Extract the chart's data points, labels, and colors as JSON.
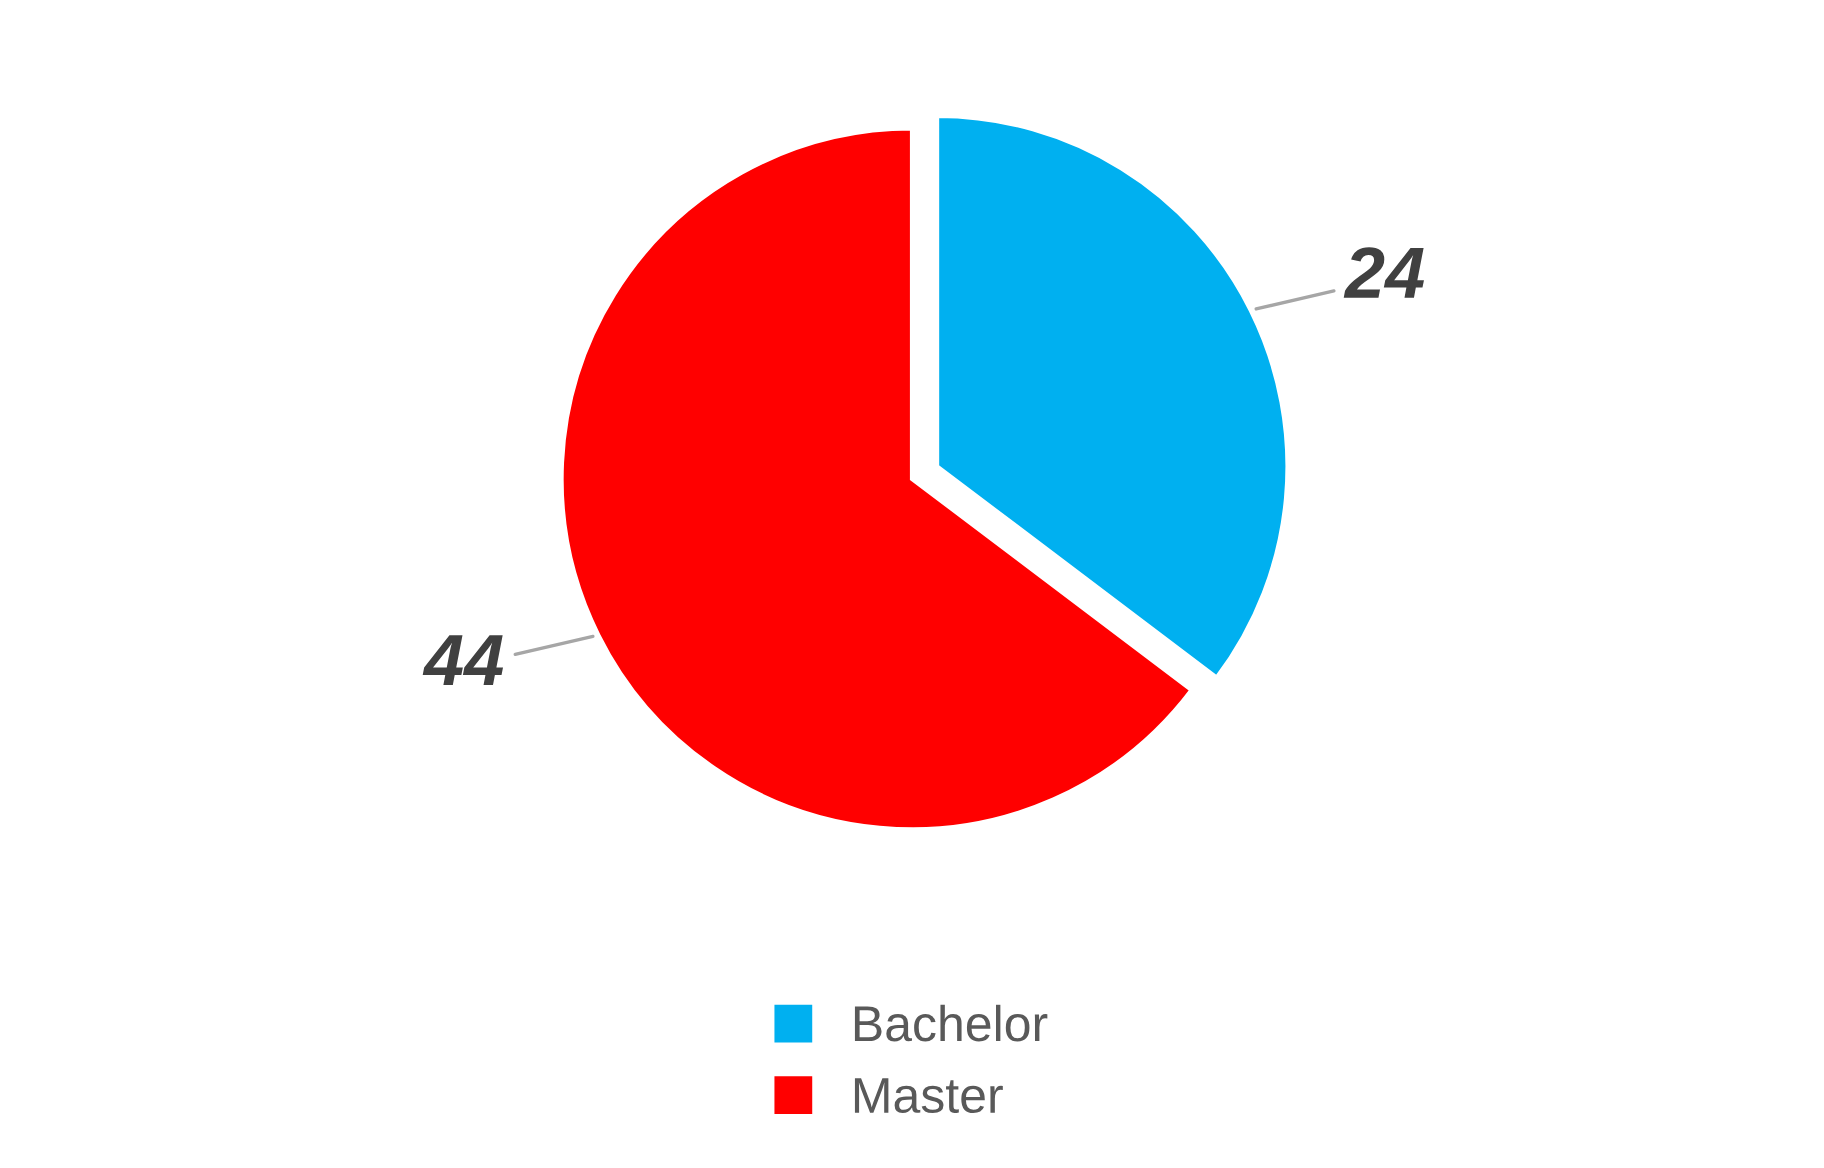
{
  "chart_data": {
    "type": "pie",
    "categories": [
      "Bachelor",
      "Master"
    ],
    "values": [
      24,
      44
    ],
    "colors": [
      "#00b0f0",
      "#ff0000"
    ],
    "data_labels": true,
    "legend": "bottom"
  }
}
